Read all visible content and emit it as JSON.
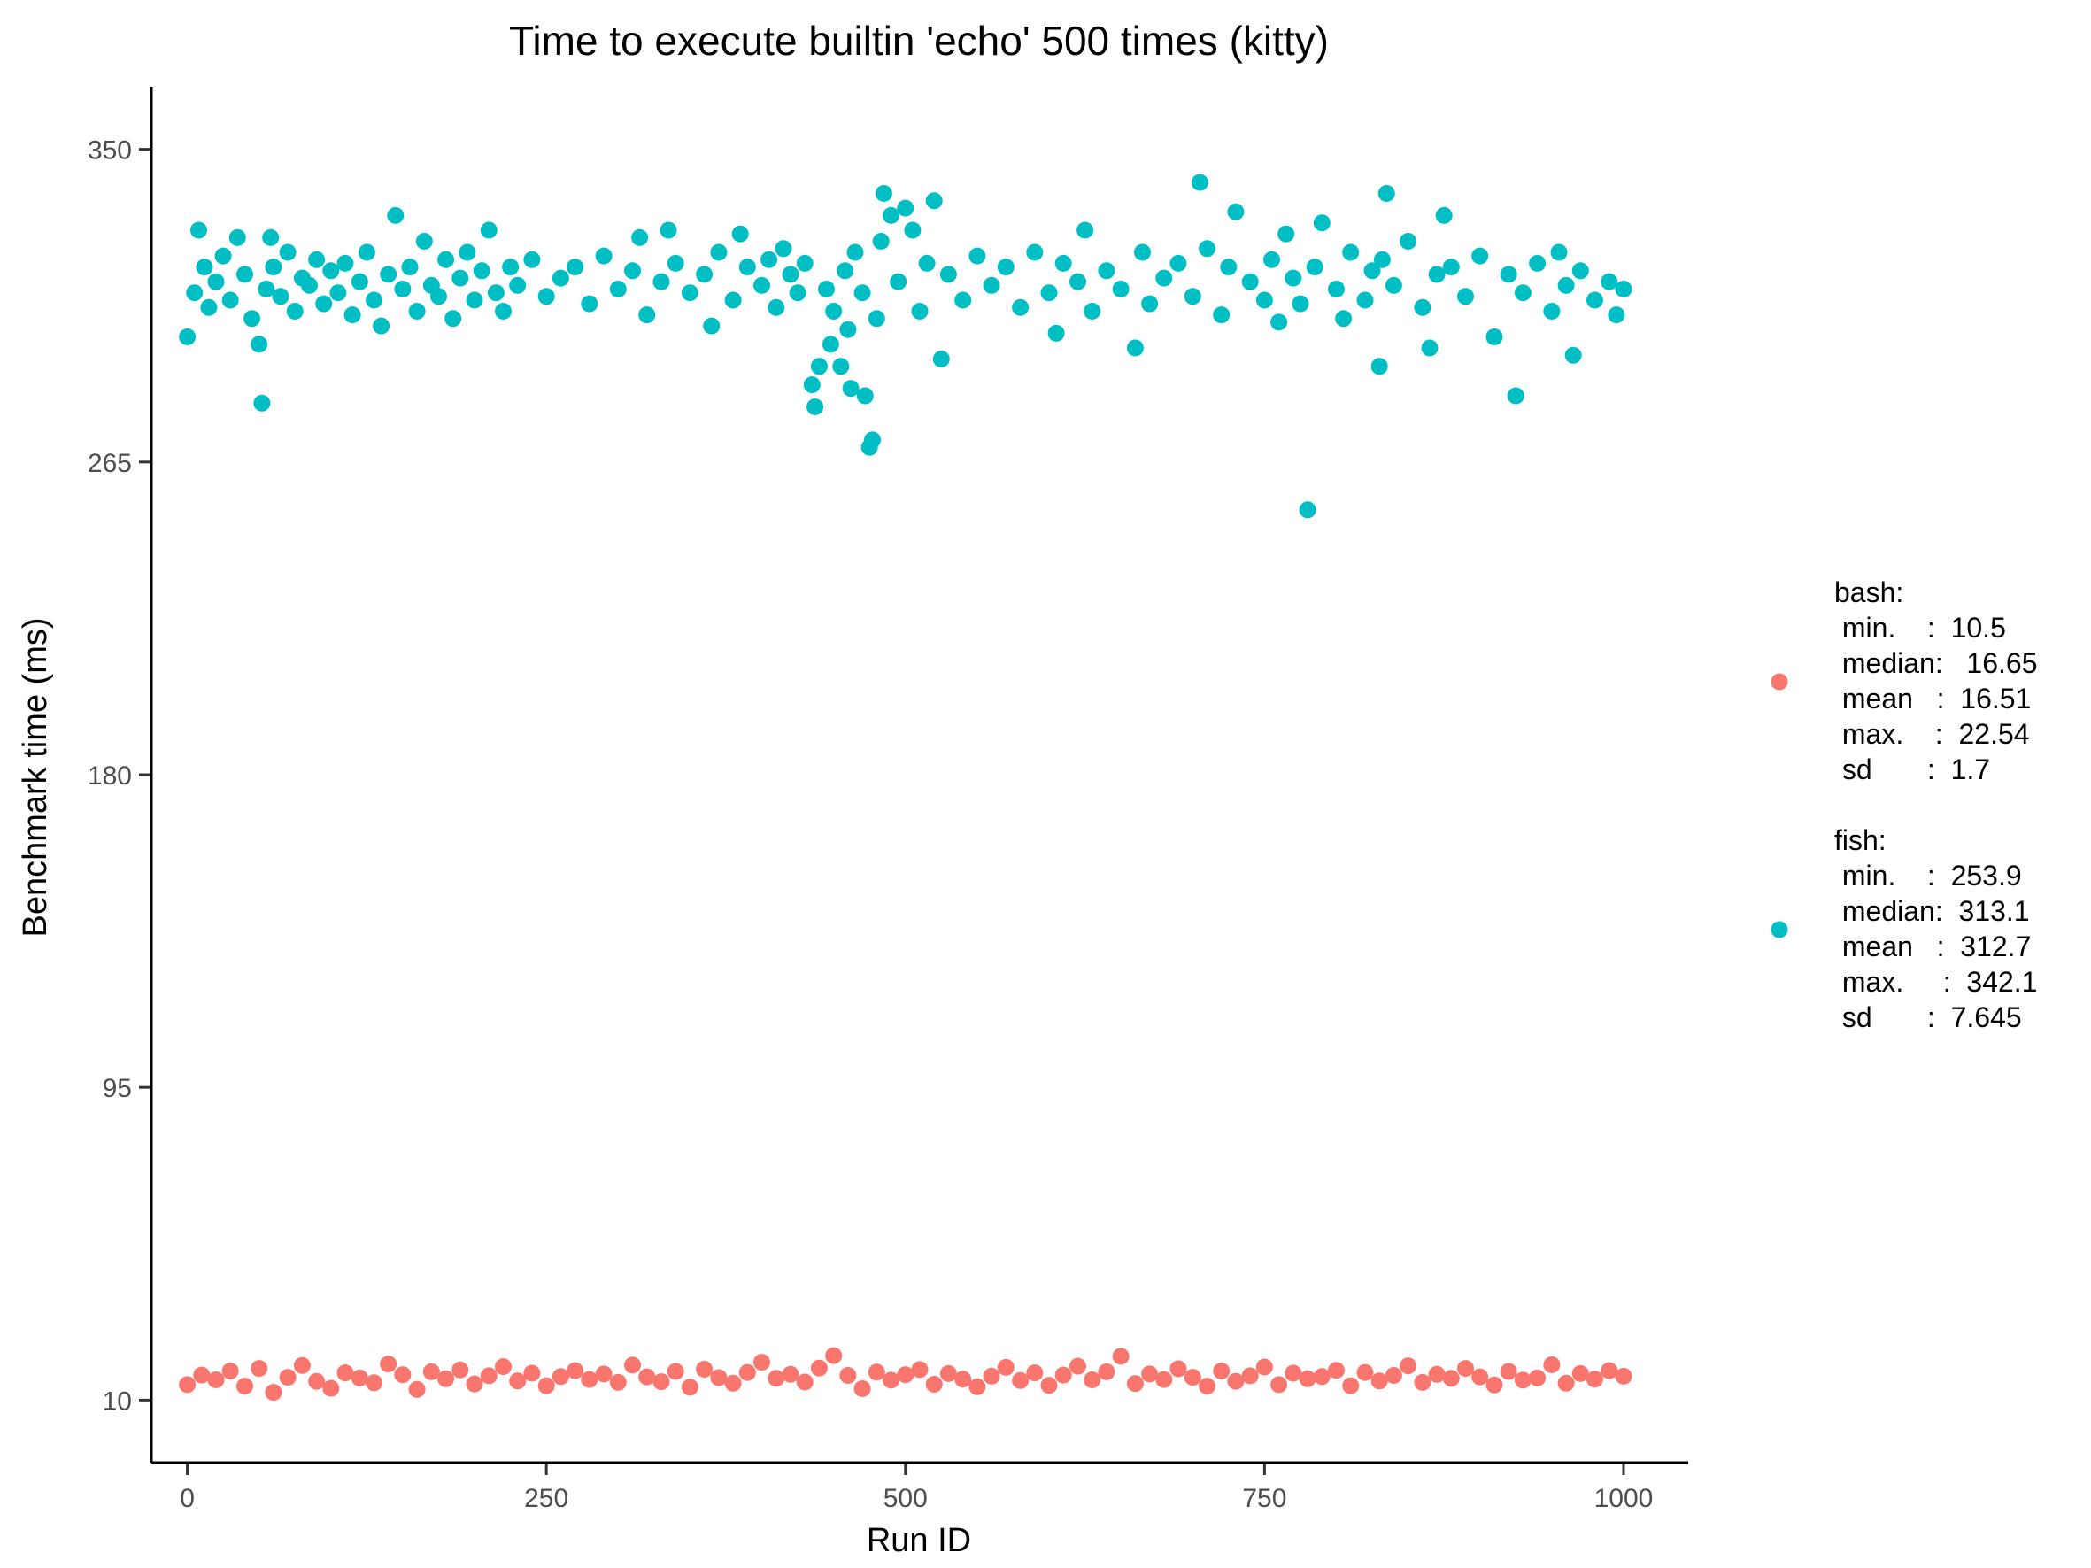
{
  "chart_data": {
    "type": "scatter",
    "title": "Time to execute builtin 'echo' 500 times (kitty)",
    "xlabel": "Run ID",
    "ylabel": "Benchmark time (ms)",
    "xlim": [
      -25,
      1045
    ],
    "ylim": [
      -7,
      367
    ],
    "x_ticks": [
      0,
      250,
      500,
      750,
      1000
    ],
    "y_ticks": [
      10,
      95,
      180,
      265,
      350
    ],
    "grid": false,
    "legend_position": "right",
    "series": [
      {
        "name": "bash",
        "color": "#F8766D",
        "legend_lines": [
          "bash:",
          " min.    :  10.5",
          " median:   16.65",
          " mean   :  16.51",
          " max.    :  22.54",
          " sd       :  1.7"
        ],
        "stats": {
          "min": 10.5,
          "median": 16.65,
          "mean": 16.51,
          "max": 22.54,
          "sd": 1.7
        },
        "points": [
          [
            0,
            14.2
          ],
          [
            10,
            16.8
          ],
          [
            20,
            15.5
          ],
          [
            30,
            17.9
          ],
          [
            40,
            13.8
          ],
          [
            50,
            18.6
          ],
          [
            60,
            12.1
          ],
          [
            70,
            16.2
          ],
          [
            80,
            19.4
          ],
          [
            90,
            15.1
          ],
          [
            100,
            13.2
          ],
          [
            110,
            17.4
          ],
          [
            120,
            16.0
          ],
          [
            130,
            14.7
          ],
          [
            140,
            19.8
          ],
          [
            150,
            16.9
          ],
          [
            160,
            12.9
          ],
          [
            170,
            17.7
          ],
          [
            180,
            15.8
          ],
          [
            190,
            18.2
          ],
          [
            200,
            14.4
          ],
          [
            210,
            16.6
          ],
          [
            220,
            19.1
          ],
          [
            230,
            15.2
          ],
          [
            240,
            17.3
          ],
          [
            250,
            13.9
          ],
          [
            260,
            16.4
          ],
          [
            270,
            18.0
          ],
          [
            280,
            15.6
          ],
          [
            290,
            17.1
          ],
          [
            300,
            14.8
          ],
          [
            310,
            19.5
          ],
          [
            320,
            16.3
          ],
          [
            330,
            15.0
          ],
          [
            340,
            17.8
          ],
          [
            350,
            13.5
          ],
          [
            360,
            18.4
          ],
          [
            370,
            16.1
          ],
          [
            380,
            14.6
          ],
          [
            390,
            17.5
          ],
          [
            400,
            20.3
          ],
          [
            410,
            15.9
          ],
          [
            420,
            17.0
          ],
          [
            430,
            14.9
          ],
          [
            440,
            18.7
          ],
          [
            450,
            22.1
          ],
          [
            460,
            16.7
          ],
          [
            470,
            13.1
          ],
          [
            480,
            17.6
          ],
          [
            490,
            15.4
          ],
          [
            500,
            16.9
          ],
          [
            510,
            18.3
          ],
          [
            520,
            14.3
          ],
          [
            530,
            17.2
          ],
          [
            540,
            15.7
          ],
          [
            550,
            13.6
          ],
          [
            560,
            16.5
          ],
          [
            570,
            18.9
          ],
          [
            580,
            15.3
          ],
          [
            590,
            17.4
          ],
          [
            600,
            14.0
          ],
          [
            610,
            16.8
          ],
          [
            620,
            19.2
          ],
          [
            630,
            15.5
          ],
          [
            640,
            17.7
          ],
          [
            650,
            21.9
          ],
          [
            660,
            14.5
          ],
          [
            670,
            17.1
          ],
          [
            680,
            15.6
          ],
          [
            690,
            18.5
          ],
          [
            700,
            16.2
          ],
          [
            710,
            13.8
          ],
          [
            720,
            17.9
          ],
          [
            730,
            15.1
          ],
          [
            740,
            16.6
          ],
          [
            750,
            19.0
          ],
          [
            760,
            14.2
          ],
          [
            770,
            17.3
          ],
          [
            780,
            15.8
          ],
          [
            790,
            16.4
          ],
          [
            800,
            18.1
          ],
          [
            810,
            13.9
          ],
          [
            820,
            17.5
          ],
          [
            830,
            15.2
          ],
          [
            840,
            16.7
          ],
          [
            850,
            19.3
          ],
          [
            860,
            14.8
          ],
          [
            870,
            17.0
          ],
          [
            880,
            15.9
          ],
          [
            890,
            18.6
          ],
          [
            900,
            16.3
          ],
          [
            910,
            14.1
          ],
          [
            920,
            17.8
          ],
          [
            930,
            15.4
          ],
          [
            940,
            16.0
          ],
          [
            950,
            19.6
          ],
          [
            960,
            14.6
          ],
          [
            970,
            17.2
          ],
          [
            980,
            15.7
          ],
          [
            990,
            18.0
          ],
          [
            1000,
            16.5
          ]
        ]
      },
      {
        "name": "fish",
        "color": "#00BFC4",
        "legend_lines": [
          "fish:",
          " min.    :  253.9",
          " median:  313.1",
          " mean   :  312.7",
          " max.     :  342.1",
          " sd       :  7.645"
        ],
        "stats": {
          "min": 253.9,
          "median": 313.1,
          "mean": 312.7,
          "max": 342.1,
          "sd": 7.645
        },
        "points": [
          [
            0,
            299
          ],
          [
            5,
            311
          ],
          [
            8,
            328
          ],
          [
            12,
            318
          ],
          [
            15,
            307
          ],
          [
            20,
            314
          ],
          [
            25,
            321
          ],
          [
            30,
            309
          ],
          [
            35,
            326
          ],
          [
            40,
            316
          ],
          [
            45,
            304
          ],
          [
            50,
            297
          ],
          [
            52,
            281
          ],
          [
            55,
            312
          ],
          [
            58,
            326
          ],
          [
            60,
            318
          ],
          [
            65,
            310
          ],
          [
            70,
            322
          ],
          [
            75,
            306
          ],
          [
            80,
            315
          ],
          [
            85,
            313
          ],
          [
            90,
            320
          ],
          [
            95,
            308
          ],
          [
            100,
            317
          ],
          [
            105,
            311
          ],
          [
            110,
            319
          ],
          [
            115,
            305
          ],
          [
            120,
            314
          ],
          [
            125,
            322
          ],
          [
            130,
            309
          ],
          [
            135,
            302
          ],
          [
            140,
            316
          ],
          [
            145,
            332
          ],
          [
            150,
            312
          ],
          [
            155,
            318
          ],
          [
            160,
            306
          ],
          [
            165,
            325
          ],
          [
            170,
            313
          ],
          [
            175,
            310
          ],
          [
            180,
            320
          ],
          [
            185,
            304
          ],
          [
            190,
            315
          ],
          [
            195,
            322
          ],
          [
            200,
            309
          ],
          [
            205,
            317
          ],
          [
            210,
            328
          ],
          [
            215,
            311
          ],
          [
            220,
            306
          ],
          [
            225,
            318
          ],
          [
            230,
            313
          ],
          [
            240,
            320
          ],
          [
            250,
            310
          ],
          [
            260,
            315
          ],
          [
            270,
            318
          ],
          [
            280,
            308
          ],
          [
            290,
            321
          ],
          [
            300,
            312
          ],
          [
            310,
            317
          ],
          [
            315,
            326
          ],
          [
            320,
            305
          ],
          [
            330,
            314
          ],
          [
            335,
            328
          ],
          [
            340,
            319
          ],
          [
            350,
            311
          ],
          [
            360,
            316
          ],
          [
            365,
            302
          ],
          [
            370,
            322
          ],
          [
            380,
            309
          ],
          [
            385,
            327
          ],
          [
            390,
            318
          ],
          [
            400,
            313
          ],
          [
            405,
            320
          ],
          [
            410,
            307
          ],
          [
            415,
            323
          ],
          [
            420,
            316
          ],
          [
            425,
            311
          ],
          [
            430,
            319
          ],
          [
            435,
            286
          ],
          [
            437,
            280
          ],
          [
            440,
            291
          ],
          [
            445,
            312
          ],
          [
            448,
            297
          ],
          [
            450,
            306
          ],
          [
            455,
            291
          ],
          [
            458,
            317
          ],
          [
            460,
            301
          ],
          [
            462,
            285
          ],
          [
            465,
            322
          ],
          [
            470,
            311
          ],
          [
            472,
            283
          ],
          [
            475,
            269
          ],
          [
            477,
            271
          ],
          [
            480,
            304
          ],
          [
            483,
            325
          ],
          [
            485,
            338
          ],
          [
            490,
            332
          ],
          [
            495,
            314
          ],
          [
            500,
            334
          ],
          [
            505,
            328
          ],
          [
            510,
            306
          ],
          [
            515,
            319
          ],
          [
            520,
            336
          ],
          [
            525,
            293
          ],
          [
            530,
            316
          ],
          [
            540,
            309
          ],
          [
            550,
            321
          ],
          [
            560,
            313
          ],
          [
            570,
            318
          ],
          [
            580,
            307
          ],
          [
            590,
            322
          ],
          [
            600,
            311
          ],
          [
            605,
            300
          ],
          [
            610,
            319
          ],
          [
            620,
            314
          ],
          [
            625,
            328
          ],
          [
            630,
            306
          ],
          [
            640,
            317
          ],
          [
            650,
            312
          ],
          [
            660,
            296
          ],
          [
            665,
            322
          ],
          [
            670,
            308
          ],
          [
            680,
            315
          ],
          [
            690,
            319
          ],
          [
            700,
            310
          ],
          [
            705,
            341
          ],
          [
            710,
            323
          ],
          [
            720,
            305
          ],
          [
            725,
            318
          ],
          [
            730,
            333
          ],
          [
            740,
            314
          ],
          [
            750,
            309
          ],
          [
            755,
            320
          ],
          [
            760,
            303
          ],
          [
            765,
            327
          ],
          [
            770,
            315
          ],
          [
            775,
            308
          ],
          [
            780,
            252
          ],
          [
            785,
            318
          ],
          [
            790,
            330
          ],
          [
            800,
            312
          ],
          [
            805,
            304
          ],
          [
            810,
            322
          ],
          [
            820,
            309
          ],
          [
            825,
            317
          ],
          [
            830,
            291
          ],
          [
            832,
            320
          ],
          [
            835,
            338
          ],
          [
            840,
            313
          ],
          [
            850,
            325
          ],
          [
            860,
            307
          ],
          [
            865,
            296
          ],
          [
            870,
            316
          ],
          [
            875,
            332
          ],
          [
            880,
            318
          ],
          [
            890,
            310
          ],
          [
            900,
            321
          ],
          [
            910,
            299
          ],
          [
            920,
            316
          ],
          [
            925,
            283
          ],
          [
            930,
            311
          ],
          [
            940,
            319
          ],
          [
            950,
            306
          ],
          [
            955,
            322
          ],
          [
            960,
            313
          ],
          [
            965,
            294
          ],
          [
            970,
            317
          ],
          [
            980,
            309
          ],
          [
            990,
            314
          ],
          [
            995,
            305
          ],
          [
            1000,
            312
          ]
        ]
      }
    ]
  }
}
